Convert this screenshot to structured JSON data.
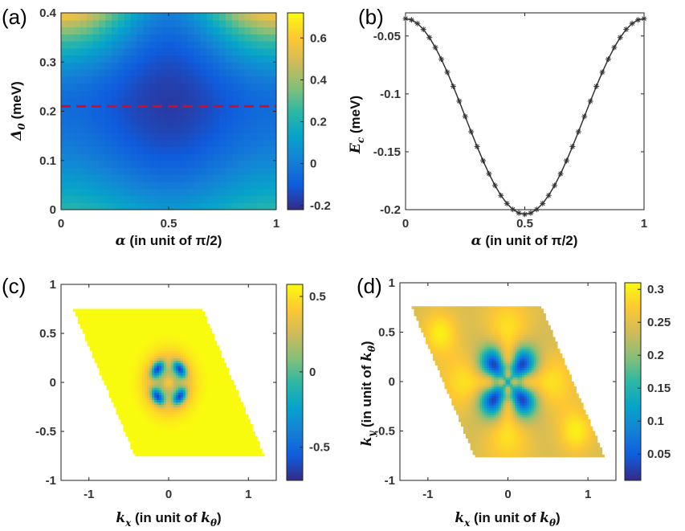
{
  "chart_data": [
    {
      "id": "a",
      "panel_label": "(a)",
      "type": "heatmap",
      "title": "",
      "xlabel_sym": "α",
      "xlabel_rest": " (in unit of π/2)",
      "ylabel_sym": "Δ",
      "ylabel_sub": "0",
      "ylabel_rest": " (meV)",
      "xlim": [
        0,
        1
      ],
      "ylim": [
        0,
        0.4
      ],
      "x_ticks": [
        0,
        0.5,
        1
      ],
      "x_tick_labels": [
        "0",
        "0.5",
        "1"
      ],
      "y_ticks": [
        0,
        0.1,
        0.2,
        0.3,
        0.4
      ],
      "y_tick_labels": [
        "0",
        "0.1",
        "0.2",
        "0.3",
        "0.4"
      ],
      "colorbar": {
        "range": [
          -0.22,
          0.72
        ],
        "ticks": [
          -0.2,
          0,
          0.2,
          0.4,
          0.6
        ],
        "tick_labels": [
          "-0.2",
          "0",
          "0.2",
          "0.4",
          "0.6"
        ]
      },
      "annotation": {
        "type": "dashed-hline",
        "y": 0.21,
        "color": "#c8102e"
      }
    },
    {
      "id": "b",
      "panel_label": "(b)",
      "type": "line",
      "title": "",
      "xlabel_sym": "α",
      "xlabel_rest": " (in unit of π/2)",
      "ylabel_sym": "E",
      "ylabel_sub": "c",
      "ylabel_rest": " (meV)",
      "xlim": [
        0,
        1
      ],
      "ylim": [
        -0.2,
        -0.03
      ],
      "x_ticks": [
        0,
        0.5,
        1
      ],
      "x_tick_labels": [
        "0",
        "0.5",
        "1"
      ],
      "y_ticks": [
        -0.2,
        -0.15,
        -0.1,
        -0.05
      ],
      "y_tick_labels": [
        "-0.2",
        "-0.15",
        "-0.1",
        "-0.05"
      ],
      "series": [
        {
          "name": "E_c",
          "marker": "asterisk",
          "x": [
            0.0,
            0.025,
            0.05,
            0.075,
            0.1,
            0.125,
            0.15,
            0.175,
            0.2,
            0.225,
            0.25,
            0.275,
            0.3,
            0.325,
            0.35,
            0.375,
            0.4,
            0.425,
            0.45,
            0.475,
            0.5,
            0.525,
            0.55,
            0.575,
            0.6,
            0.625,
            0.65,
            0.675,
            0.7,
            0.725,
            0.75,
            0.775,
            0.8,
            0.825,
            0.85,
            0.875,
            0.9,
            0.925,
            0.95,
            0.975,
            1.0
          ],
          "y": [
            -0.035,
            -0.0361,
            -0.0392,
            -0.0443,
            -0.0513,
            -0.0599,
            -0.07,
            -0.0813,
            -0.0935,
            -0.1063,
            -0.1195,
            -0.1327,
            -0.1455,
            -0.1577,
            -0.169,
            -0.1791,
            -0.1877,
            -0.1947,
            -0.1998,
            -0.2029,
            -0.204,
            -0.2029,
            -0.1998,
            -0.1947,
            -0.1877,
            -0.1791,
            -0.169,
            -0.1577,
            -0.1455,
            -0.1327,
            -0.1195,
            -0.1063,
            -0.0935,
            -0.0813,
            -0.07,
            -0.0599,
            -0.0513,
            -0.0443,
            -0.0392,
            -0.0361,
            -0.035
          ]
        }
      ]
    },
    {
      "id": "c",
      "panel_label": "(c)",
      "type": "heatmap",
      "title": "",
      "xlabel_sym": "k",
      "xlabel_sub": "x",
      "xlabel_rest": " (in unit of ",
      "xlabel_unit_sym": "k",
      "xlabel_unit_sub": "θ",
      "xlabel_close": ")",
      "xlim": [
        -1.35,
        1.35
      ],
      "ylim": [
        -1,
        1
      ],
      "x_ticks": [
        -1,
        0,
        1
      ],
      "x_tick_labels": [
        "-1",
        "0",
        "1"
      ],
      "y_ticks": [
        -1,
        -0.5,
        0,
        0.5,
        1
      ],
      "y_tick_labels": [
        "-1",
        "-0.5",
        "0",
        "0.5",
        "1"
      ],
      "domain": "rhombus",
      "rhombus_corners": [
        [
          -1.2,
          0.75
        ],
        [
          0.42,
          0.75
        ],
        [
          1.2,
          -0.75
        ],
        [
          -0.42,
          -0.75
        ]
      ],
      "colorbar": {
        "range": [
          -0.72,
          0.58
        ],
        "ticks": [
          -0.5,
          0,
          0.5
        ],
        "tick_labels": [
          "-0.5",
          "0",
          "0.5"
        ]
      }
    },
    {
      "id": "d",
      "panel_label": "(d)",
      "type": "heatmap",
      "title": "",
      "xlabel_sym": "k",
      "xlabel_sub": "x",
      "xlabel_rest": " (in unit of ",
      "xlabel_unit_sym": "k",
      "xlabel_unit_sub": "θ",
      "xlabel_close": ")",
      "ylabel_sym": "k",
      "ylabel_sub": "y",
      "ylabel_rest": " (in unit of ",
      "ylabel_unit_sym": "k",
      "ylabel_unit_sub": "θ",
      "ylabel_close": ")",
      "xlim": [
        -1.35,
        1.35
      ],
      "ylim": [
        -1,
        1
      ],
      "x_ticks": [
        -1,
        0,
        1
      ],
      "x_tick_labels": [
        "-1",
        "0",
        "1"
      ],
      "y_ticks": [
        -1,
        -0.5,
        0,
        0.5,
        1
      ],
      "y_tick_labels": [
        "-1",
        "-0.5",
        "0",
        "0.5",
        "1"
      ],
      "domain": "rhombus",
      "rhombus_corners": [
        [
          -1.2,
          0.75
        ],
        [
          0.42,
          0.75
        ],
        [
          1.2,
          -0.75
        ],
        [
          -0.42,
          -0.75
        ]
      ],
      "colorbar": {
        "range": [
          0.01,
          0.31
        ],
        "ticks": [
          0.05,
          0.1,
          0.15,
          0.2,
          0.25,
          0.3
        ],
        "tick_labels": [
          "0.05",
          "0.1",
          "0.15",
          "0.2",
          "0.25",
          "0.3"
        ]
      }
    }
  ],
  "colors": {
    "parula_stops": [
      "#352a87",
      "#0f5cdd",
      "#1481d6",
      "#06a4ca",
      "#2eb7a4",
      "#87bf77",
      "#d1bb59",
      "#fec832",
      "#f9fb0e"
    ],
    "line": "#333333",
    "axis": "#222222"
  }
}
